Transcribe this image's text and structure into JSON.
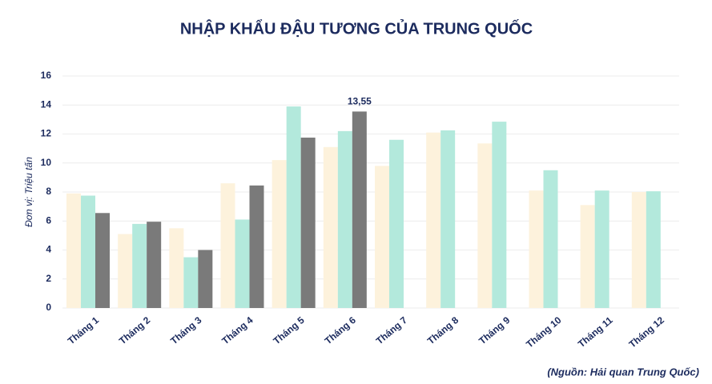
{
  "chart_data": {
    "type": "bar",
    "title": "NHẬP KHẨU ĐẬU TƯƠNG CỦA TRUNG QUỐC",
    "y_label": "Đơn vị: Triệu tấn",
    "source": "(Nguồn: Hải quan Trung Quốc)",
    "categories": [
      "Tháng 1",
      "Tháng 2",
      "Tháng 3",
      "Tháng 4",
      "Tháng 5",
      "Tháng 6",
      "Tháng 7",
      "Tháng 8",
      "Tháng 9",
      "Tháng 10",
      "Tháng 11",
      "Tháng 12"
    ],
    "series": [
      {
        "color": "#fdf2dc",
        "values": [
          7.9,
          5.1,
          5.5,
          8.6,
          10.2,
          11.1,
          9.8,
          12.1,
          11.35,
          8.1,
          7.1,
          8.0
        ]
      },
      {
        "color": "#b3e9dc",
        "values": [
          7.75,
          5.8,
          3.5,
          6.1,
          13.9,
          12.2,
          11.6,
          12.25,
          12.85,
          9.5,
          8.1,
          8.05
        ]
      },
      {
        "color": "#7a7a7a",
        "values": [
          6.55,
          5.95,
          4.0,
          8.45,
          11.75,
          13.55,
          null,
          null,
          null,
          null,
          null,
          null
        ],
        "value_labels": [
          null,
          null,
          null,
          null,
          null,
          "13,55",
          null,
          null,
          null,
          null,
          null,
          null
        ]
      }
    ],
    "ylim": [
      0,
      16
    ],
    "yticks": [
      0,
      2,
      4,
      6,
      8,
      10,
      12,
      14,
      16
    ],
    "grid": true
  }
}
